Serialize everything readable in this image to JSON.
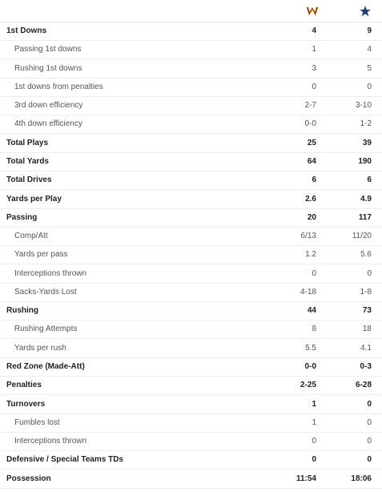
{
  "teams": {
    "away": {
      "icon": "washington-w-logo-icon",
      "color": "#8b1a1a"
    },
    "home": {
      "icon": "dallas-star-logo-icon",
      "color": "#1f3d6e"
    }
  },
  "rows": [
    {
      "label": "1st Downs",
      "away": "4",
      "home": "9",
      "main": true
    },
    {
      "label": "Passing 1st downs",
      "away": "1",
      "home": "4",
      "main": false
    },
    {
      "label": "Rushing 1st downs",
      "away": "3",
      "home": "5",
      "main": false
    },
    {
      "label": "1st downs from penalties",
      "away": "0",
      "home": "0",
      "main": false
    },
    {
      "label": "3rd down efficiency",
      "away": "2-7",
      "home": "3-10",
      "main": false
    },
    {
      "label": "4th down efficiency",
      "away": "0-0",
      "home": "1-2",
      "main": false
    },
    {
      "label": "Total Plays",
      "away": "25",
      "home": "39",
      "main": true
    },
    {
      "label": "Total Yards",
      "away": "64",
      "home": "190",
      "main": true
    },
    {
      "label": "Total Drives",
      "away": "6",
      "home": "6",
      "main": true
    },
    {
      "label": "Yards per Play",
      "away": "2.6",
      "home": "4.9",
      "main": true
    },
    {
      "label": "Passing",
      "away": "20",
      "home": "117",
      "main": true
    },
    {
      "label": "Comp/Att",
      "away": "6/13",
      "home": "11/20",
      "main": false
    },
    {
      "label": "Yards per pass",
      "away": "1.2",
      "home": "5.6",
      "main": false
    },
    {
      "label": "Interceptions thrown",
      "away": "0",
      "home": "0",
      "main": false
    },
    {
      "label": "Sacks-Yards Lost",
      "away": "4-18",
      "home": "1-8",
      "main": false
    },
    {
      "label": "Rushing",
      "away": "44",
      "home": "73",
      "main": true
    },
    {
      "label": "Rushing Attempts",
      "away": "8",
      "home": "18",
      "main": false
    },
    {
      "label": "Yards per rush",
      "away": "5.5",
      "home": "4.1",
      "main": false
    },
    {
      "label": "Red Zone (Made-Att)",
      "away": "0-0",
      "home": "0-3",
      "main": true
    },
    {
      "label": "Penalties",
      "away": "2-25",
      "home": "6-28",
      "main": true
    },
    {
      "label": "Turnovers",
      "away": "1",
      "home": "0",
      "main": true
    },
    {
      "label": "Fumbles lost",
      "away": "1",
      "home": "0",
      "main": false
    },
    {
      "label": "Interceptions thrown",
      "away": "0",
      "home": "0",
      "main": false
    },
    {
      "label": "Defensive / Special Teams TDs",
      "away": "0",
      "home": "0",
      "main": true
    },
    {
      "label": "Possession",
      "away": "11:54",
      "home": "18:06",
      "main": true
    }
  ]
}
